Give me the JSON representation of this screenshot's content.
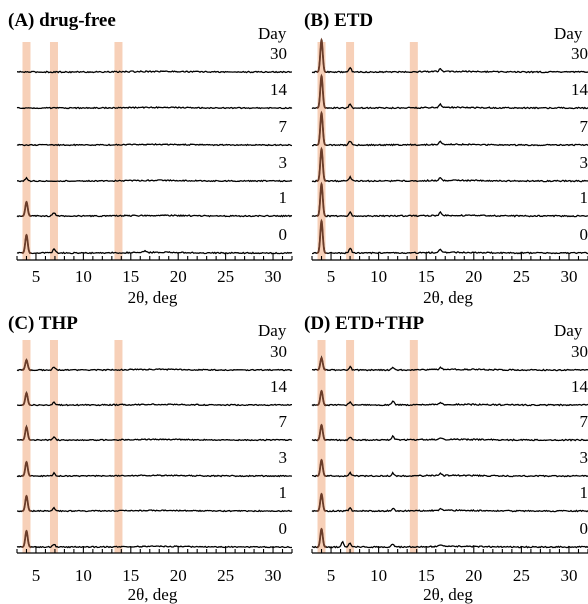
{
  "chart_data": [
    {
      "type": "line",
      "title": "(A) drug-free",
      "legend_title": "Day",
      "xlabel": "2θ, deg",
      "xlim": [
        3,
        32
      ],
      "x_ticks": [
        "5",
        "10",
        "15",
        "20",
        "25",
        "30"
      ],
      "highlight_regions_2theta": [
        4.0,
        6.9,
        13.7
      ],
      "highlight_color": "#f5c4a6",
      "trace_color": "#000000",
      "peak_color": "#6b3d2a",
      "series": [
        {
          "name": "30",
          "peaks": [],
          "noise": 0.8
        },
        {
          "name": "14",
          "peaks": [],
          "noise": 0.7
        },
        {
          "name": "7",
          "peaks": [],
          "noise": 0.7
        },
        {
          "name": "3",
          "peaks": [
            {
              "x": 4.0,
              "h": 3
            }
          ],
          "noise": 0.7
        },
        {
          "name": "1",
          "peaks": [
            {
              "x": 4.0,
              "h": 14
            },
            {
              "x": 6.9,
              "h": 3
            }
          ],
          "noise": 0.8
        },
        {
          "name": "0",
          "peaks": [
            {
              "x": 4.0,
              "h": 18
            },
            {
              "x": 6.9,
              "h": 4
            },
            {
              "x": 16.5,
              "h": 2
            }
          ],
          "noise": 0.8
        }
      ]
    },
    {
      "type": "line",
      "title": "(B) ETD",
      "legend_title": "Day",
      "xlabel": "2θ, deg",
      "xlim": [
        3,
        32
      ],
      "x_ticks": [
        "5",
        "10",
        "15",
        "20",
        "25",
        "30"
      ],
      "highlight_regions_2theta": [
        4.0,
        7.0,
        13.7
      ],
      "highlight_color": "#f5c4a6",
      "trace_color": "#000000",
      "peak_color": "#6b3d2a",
      "series": [
        {
          "name": "30",
          "peaks": [
            {
              "x": 4.0,
              "h": 32
            },
            {
              "x": 7.0,
              "h": 4
            },
            {
              "x": 16.5,
              "h": 3
            }
          ],
          "noise": 0.8
        },
        {
          "name": "14",
          "peaks": [
            {
              "x": 4.0,
              "h": 32
            },
            {
              "x": 7.0,
              "h": 4
            },
            {
              "x": 16.5,
              "h": 3
            }
          ],
          "noise": 0.8
        },
        {
          "name": "7",
          "peaks": [
            {
              "x": 4.0,
              "h": 32
            },
            {
              "x": 7.0,
              "h": 4
            },
            {
              "x": 16.5,
              "h": 3
            }
          ],
          "noise": 0.8
        },
        {
          "name": "3",
          "peaks": [
            {
              "x": 4.0,
              "h": 32
            },
            {
              "x": 7.0,
              "h": 4
            },
            {
              "x": 16.5,
              "h": 3
            }
          ],
          "noise": 0.8
        },
        {
          "name": "1",
          "peaks": [
            {
              "x": 4.0,
              "h": 32
            },
            {
              "x": 7.0,
              "h": 4
            },
            {
              "x": 16.5,
              "h": 3
            }
          ],
          "noise": 0.8
        },
        {
          "name": "0",
          "peaks": [
            {
              "x": 4.0,
              "h": 32
            },
            {
              "x": 7.0,
              "h": 5
            },
            {
              "x": 16.5,
              "h": 3
            }
          ],
          "noise": 0.8
        }
      ]
    },
    {
      "type": "line",
      "title": "(C) THP",
      "legend_title": "Day",
      "xlabel": "2θ, deg",
      "xlim": [
        3,
        32
      ],
      "x_ticks": [
        "5",
        "10",
        "15",
        "20",
        "25",
        "30"
      ],
      "highlight_regions_2theta": [
        4.0,
        6.9,
        13.7
      ],
      "highlight_color": "#f5c4a6",
      "trace_color": "#000000",
      "peak_color": "#6b3d2a",
      "series": [
        {
          "name": "30",
          "peaks": [
            {
              "x": 4.0,
              "h": 10
            },
            {
              "x": 6.9,
              "h": 3
            }
          ],
          "noise": 0.7
        },
        {
          "name": "14",
          "peaks": [
            {
              "x": 4.0,
              "h": 12
            },
            {
              "x": 6.9,
              "h": 3
            }
          ],
          "noise": 0.7
        },
        {
          "name": "7",
          "peaks": [
            {
              "x": 4.0,
              "h": 13
            },
            {
              "x": 6.9,
              "h": 3
            }
          ],
          "noise": 0.7
        },
        {
          "name": "3",
          "peaks": [
            {
              "x": 4.0,
              "h": 14
            },
            {
              "x": 6.9,
              "h": 3
            }
          ],
          "noise": 0.7
        },
        {
          "name": "1",
          "peaks": [
            {
              "x": 4.0,
              "h": 15
            },
            {
              "x": 6.9,
              "h": 3
            }
          ],
          "noise": 0.7
        },
        {
          "name": "0",
          "peaks": [
            {
              "x": 4.0,
              "h": 16
            },
            {
              "x": 6.9,
              "h": 3
            }
          ],
          "noise": 0.7
        }
      ]
    },
    {
      "type": "line",
      "title": "(D) ETD+THP",
      "legend_title": "Day",
      "xlabel": "2θ, deg",
      "xlim": [
        3,
        32
      ],
      "x_ticks": [
        "5",
        "10",
        "15",
        "20",
        "25",
        "30"
      ],
      "highlight_regions_2theta": [
        4.0,
        7.0,
        13.7
      ],
      "highlight_color": "#f5c4a6",
      "trace_color": "#000000",
      "peak_color": "#6b3d2a",
      "series": [
        {
          "name": "30",
          "peaks": [
            {
              "x": 4.0,
              "h": 12
            },
            {
              "x": 7.0,
              "h": 3
            },
            {
              "x": 11.5,
              "h": 3
            },
            {
              "x": 16.5,
              "h": 2
            }
          ],
          "noise": 0.8
        },
        {
          "name": "14",
          "peaks": [
            {
              "x": 4.0,
              "h": 14
            },
            {
              "x": 7.0,
              "h": 3
            },
            {
              "x": 11.5,
              "h": 4
            },
            {
              "x": 16.5,
              "h": 2
            }
          ],
          "noise": 0.8
        },
        {
          "name": "7",
          "peaks": [
            {
              "x": 4.0,
              "h": 15
            },
            {
              "x": 7.0,
              "h": 3
            },
            {
              "x": 11.5,
              "h": 4
            },
            {
              "x": 16.5,
              "h": 2
            }
          ],
          "noise": 0.8
        },
        {
          "name": "3",
          "peaks": [
            {
              "x": 4.0,
              "h": 16
            },
            {
              "x": 7.0,
              "h": 3
            },
            {
              "x": 11.5,
              "h": 3
            },
            {
              "x": 16.5,
              "h": 2
            }
          ],
          "noise": 0.8
        },
        {
          "name": "1",
          "peaks": [
            {
              "x": 4.0,
              "h": 17
            },
            {
              "x": 7.0,
              "h": 3
            },
            {
              "x": 11.5,
              "h": 3
            },
            {
              "x": 16.5,
              "h": 2
            }
          ],
          "noise": 0.8
        },
        {
          "name": "0",
          "peaks": [
            {
              "x": 4.0,
              "h": 18
            },
            {
              "x": 6.2,
              "h": 5
            },
            {
              "x": 7.0,
              "h": 4
            },
            {
              "x": 11.5,
              "h": 3
            },
            {
              "x": 16.5,
              "h": 2
            }
          ],
          "noise": 0.8
        }
      ]
    }
  ]
}
